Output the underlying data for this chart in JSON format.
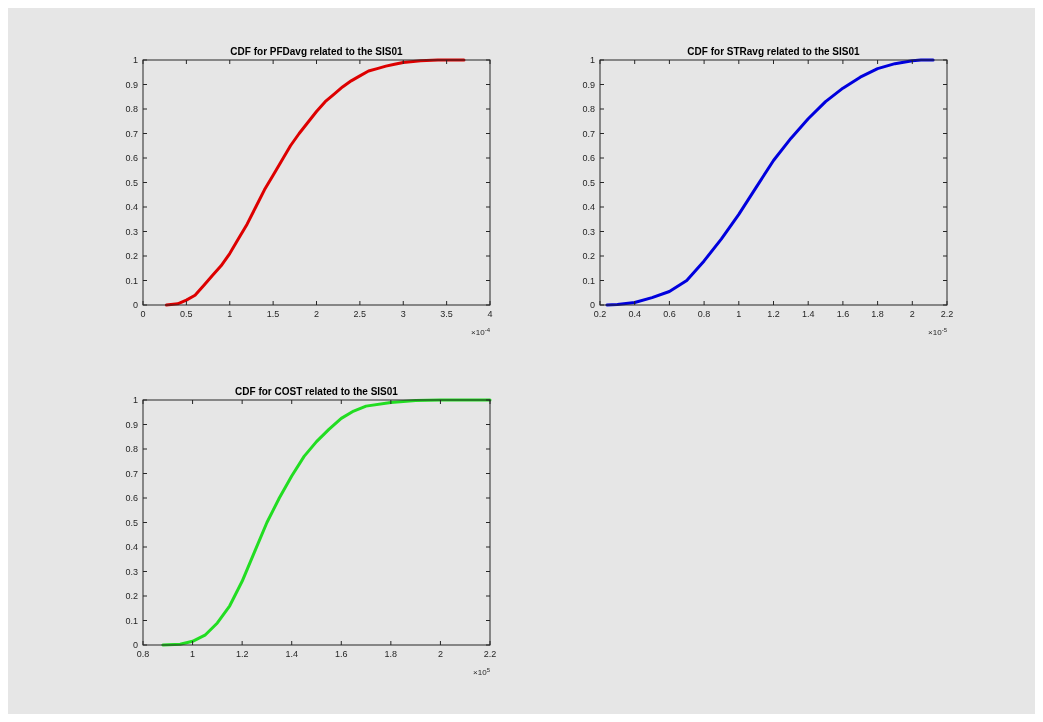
{
  "chart_data": [
    {
      "type": "line",
      "title": "CDF for PFDavg related to the SIS01",
      "color": "#dd0000",
      "x": [
        0.27,
        0.4,
        0.5,
        0.6,
        0.7,
        0.8,
        0.9,
        1.0,
        1.1,
        1.2,
        1.3,
        1.4,
        1.5,
        1.6,
        1.7,
        1.8,
        1.9,
        2.0,
        2.1,
        2.2,
        2.3,
        2.4,
        2.5,
        2.6,
        2.7,
        2.8,
        2.9,
        3.0,
        3.2,
        3.4,
        3.6,
        3.7
      ],
      "values": [
        0,
        0.005,
        0.02,
        0.04,
        0.08,
        0.12,
        0.16,
        0.21,
        0.27,
        0.33,
        0.4,
        0.47,
        0.53,
        0.59,
        0.65,
        0.7,
        0.745,
        0.79,
        0.83,
        0.86,
        0.89,
        0.915,
        0.935,
        0.955,
        0.965,
        0.975,
        0.983,
        0.99,
        0.997,
        1,
        1,
        1
      ],
      "xlim": [
        0,
        4
      ],
      "xticks": [
        0,
        0.5,
        1,
        1.5,
        2,
        2.5,
        3,
        3.5,
        4
      ],
      "ylim": [
        0,
        1
      ],
      "yticks": [
        0,
        0.1,
        0.2,
        0.3,
        0.4,
        0.5,
        0.6,
        0.7,
        0.8,
        0.9,
        1
      ],
      "annotations": [
        "×10$^{-4}$"
      ]
    },
    {
      "type": "line",
      "title": "CDF for STRavg related to the SIS01",
      "color": "#0000dd",
      "x": [
        0.24,
        0.3,
        0.4,
        0.5,
        0.6,
        0.7,
        0.8,
        0.9,
        1.0,
        1.1,
        1.2,
        1.3,
        1.4,
        1.5,
        1.6,
        1.7,
        1.8,
        1.9,
        2.0,
        2.05,
        2.12
      ],
      "values": [
        0,
        0.002,
        0.01,
        0.03,
        0.055,
        0.1,
        0.18,
        0.27,
        0.37,
        0.48,
        0.59,
        0.68,
        0.76,
        0.83,
        0.885,
        0.93,
        0.965,
        0.985,
        0.997,
        1,
        1
      ],
      "xlim": [
        0.2,
        2.2
      ],
      "xticks": [
        0.2,
        0.4,
        0.6,
        0.8,
        1,
        1.2,
        1.4,
        1.6,
        1.8,
        2,
        2.2
      ],
      "ylim": [
        0,
        1
      ],
      "yticks": [
        0,
        0.1,
        0.2,
        0.3,
        0.4,
        0.5,
        0.6,
        0.7,
        0.8,
        0.9,
        1
      ],
      "annotations": [
        "×10$^{-5}$"
      ]
    },
    {
      "type": "line",
      "title": "CDF for COST related to the SIS01",
      "color": "#22dd22",
      "x": [
        0.88,
        0.95,
        1.0,
        1.05,
        1.1,
        1.15,
        1.2,
        1.25,
        1.3,
        1.35,
        1.4,
        1.45,
        1.5,
        1.55,
        1.6,
        1.65,
        1.7,
        1.8,
        1.9,
        2.0,
        2.04,
        2.2
      ],
      "values": [
        0,
        0.003,
        0.015,
        0.04,
        0.09,
        0.16,
        0.26,
        0.38,
        0.5,
        0.6,
        0.69,
        0.77,
        0.83,
        0.88,
        0.925,
        0.955,
        0.975,
        0.99,
        0.998,
        1,
        1,
        1
      ],
      "xlim": [
        0.8,
        2.2
      ],
      "xticks": [
        0.8,
        1,
        1.2,
        1.4,
        1.6,
        1.8,
        2,
        2.2
      ],
      "ylim": [
        0,
        1
      ],
      "yticks": [
        0,
        0.1,
        0.2,
        0.3,
        0.4,
        0.5,
        0.6,
        0.7,
        0.8,
        0.9,
        1
      ],
      "annotations": [
        "×10$^{5}$"
      ]
    }
  ]
}
